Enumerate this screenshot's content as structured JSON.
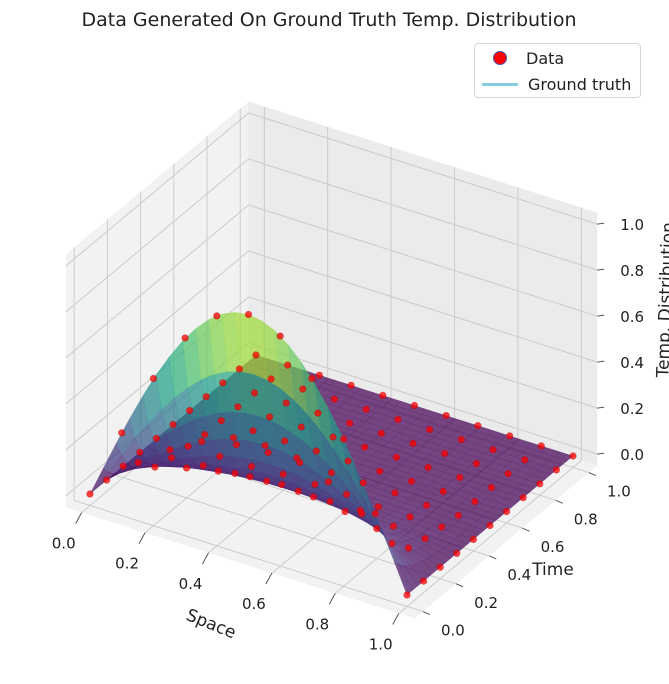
{
  "chart_data": {
    "type": "surface3d",
    "title": "Data Generated On Ground Truth Temp. Distribution",
    "xlabel": "Space",
    "ylabel": "Time",
    "zlabel": "Temp. Distribution",
    "xlim": [
      0,
      1
    ],
    "ylim": [
      0,
      1
    ],
    "zlim": [
      0,
      1
    ],
    "x_ticks": [
      "0.0",
      "0.2",
      "0.4",
      "0.6",
      "0.8",
      "1.0"
    ],
    "y_ticks": [
      "0.0",
      "0.2",
      "0.4",
      "0.6",
      "0.8",
      "1.0"
    ],
    "z_ticks": [
      "0.0",
      "0.2",
      "0.4",
      "0.6",
      "0.8",
      "1.0"
    ],
    "grid": true,
    "legend_position": "top-right",
    "colormap": "viridis",
    "series": [
      {
        "name": "Data",
        "kind": "scatter",
        "color": "#ff0000",
        "x_grid": [
          0.0,
          0.1,
          0.2,
          0.3,
          0.4,
          0.5,
          0.6,
          0.7,
          0.8,
          0.9,
          1.0
        ],
        "t_grid": [
          0.0,
          0.1,
          0.2,
          0.3,
          0.4,
          0.5,
          0.6,
          0.7,
          0.8,
          0.9,
          1.0
        ],
        "values_rows_by_time": [
          [
            0.0,
            0.31,
            0.59,
            0.81,
            0.95,
            1.0,
            0.95,
            0.81,
            0.59,
            0.31,
            0.0
          ],
          [
            0.0,
            0.12,
            0.22,
            0.3,
            0.36,
            0.37,
            0.36,
            0.3,
            0.22,
            0.12,
            0.0
          ],
          [
            0.0,
            0.04,
            0.08,
            0.11,
            0.13,
            0.14,
            0.13,
            0.11,
            0.08,
            0.04,
            0.0
          ],
          [
            0.0,
            0.02,
            0.03,
            0.04,
            0.05,
            0.05,
            0.05,
            0.04,
            0.03,
            0.02,
            0.0
          ],
          [
            0.0,
            0.01,
            0.01,
            0.01,
            0.02,
            0.02,
            0.02,
            0.01,
            0.01,
            0.01,
            0.0
          ],
          [
            0.0,
            0.0,
            0.0,
            0.01,
            0.01,
            0.01,
            0.01,
            0.01,
            0.0,
            0.0,
            0.0
          ],
          [
            0.0,
            0.0,
            0.0,
            0.0,
            0.0,
            0.0,
            0.0,
            0.0,
            0.0,
            0.0,
            0.0
          ],
          [
            0.0,
            0.0,
            0.0,
            0.0,
            0.0,
            0.0,
            0.0,
            0.0,
            0.0,
            0.0,
            0.0
          ],
          [
            0.0,
            0.0,
            0.0,
            0.0,
            0.0,
            0.0,
            0.0,
            0.0,
            0.0,
            0.0,
            0.0
          ],
          [
            0.0,
            0.0,
            0.0,
            0.0,
            0.0,
            0.0,
            0.0,
            0.0,
            0.0,
            0.0,
            0.0
          ],
          [
            0.0,
            0.0,
            0.0,
            0.0,
            0.0,
            0.0,
            0.0,
            0.0,
            0.0,
            0.0,
            0.0
          ]
        ]
      },
      {
        "name": "Ground truth",
        "kind": "surface",
        "color": "#87cbe0",
        "formula": "sin(pi*x)*exp(-pi^2*t)"
      }
    ]
  }
}
